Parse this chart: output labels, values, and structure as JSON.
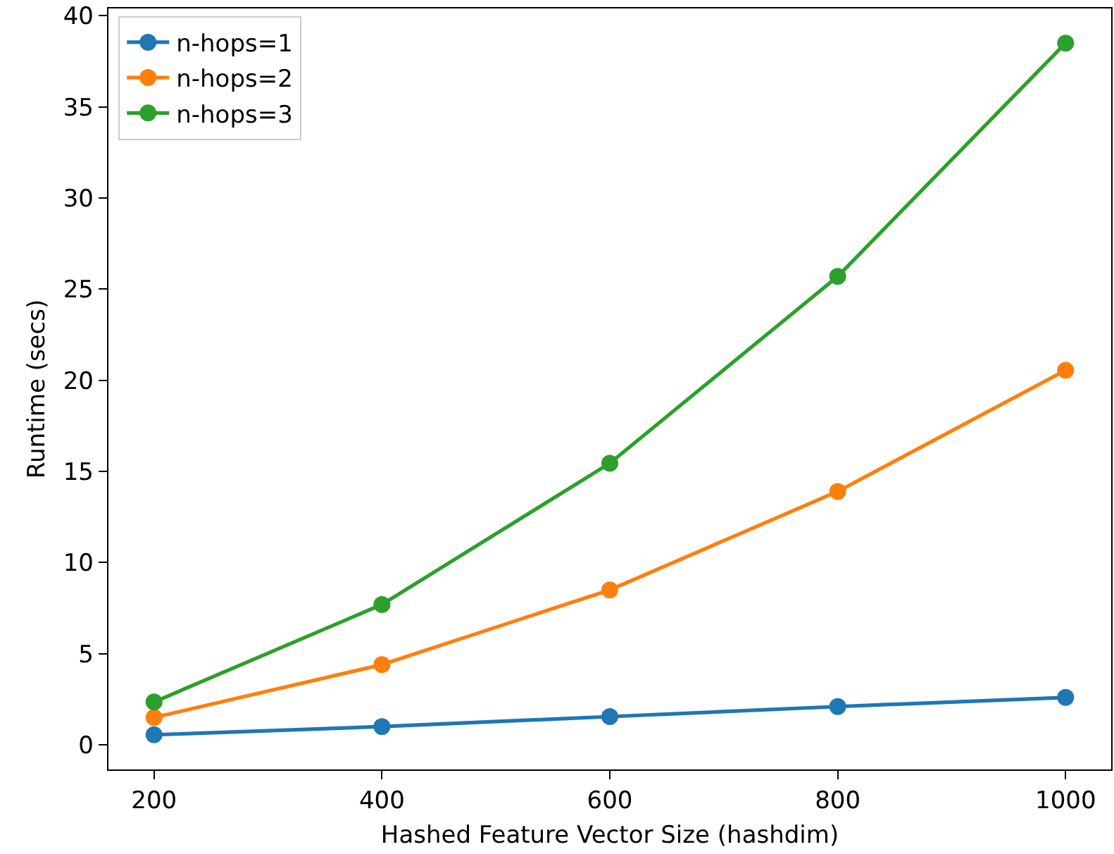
{
  "chart_data": {
    "type": "line",
    "xlabel": "Hashed Feature Vector Size (hashdim)",
    "ylabel": "Runtime (secs)",
    "x": [
      200,
      400,
      600,
      800,
      1000
    ],
    "series": [
      {
        "name": "n-hops=1",
        "color": "#1f77b4",
        "values": [
          0.55,
          1.0,
          1.55,
          2.1,
          2.6
        ]
      },
      {
        "name": "n-hops=2",
        "color": "#ff7f0e",
        "values": [
          1.5,
          4.4,
          8.5,
          13.9,
          20.55
        ]
      },
      {
        "name": "n-hops=3",
        "color": "#2ca02c",
        "values": [
          2.35,
          7.7,
          15.45,
          25.7,
          38.5
        ]
      }
    ],
    "xlim": [
      160,
      1040
    ],
    "xticks": [
      200,
      400,
      600,
      800,
      1000
    ],
    "ylim": [
      -1.35,
      40.4
    ],
    "yticks": [
      0,
      5,
      10,
      15,
      20,
      25,
      30,
      35,
      40
    ],
    "marker": "circle",
    "line_style": "solid",
    "legend": "top left",
    "grid": false
  }
}
